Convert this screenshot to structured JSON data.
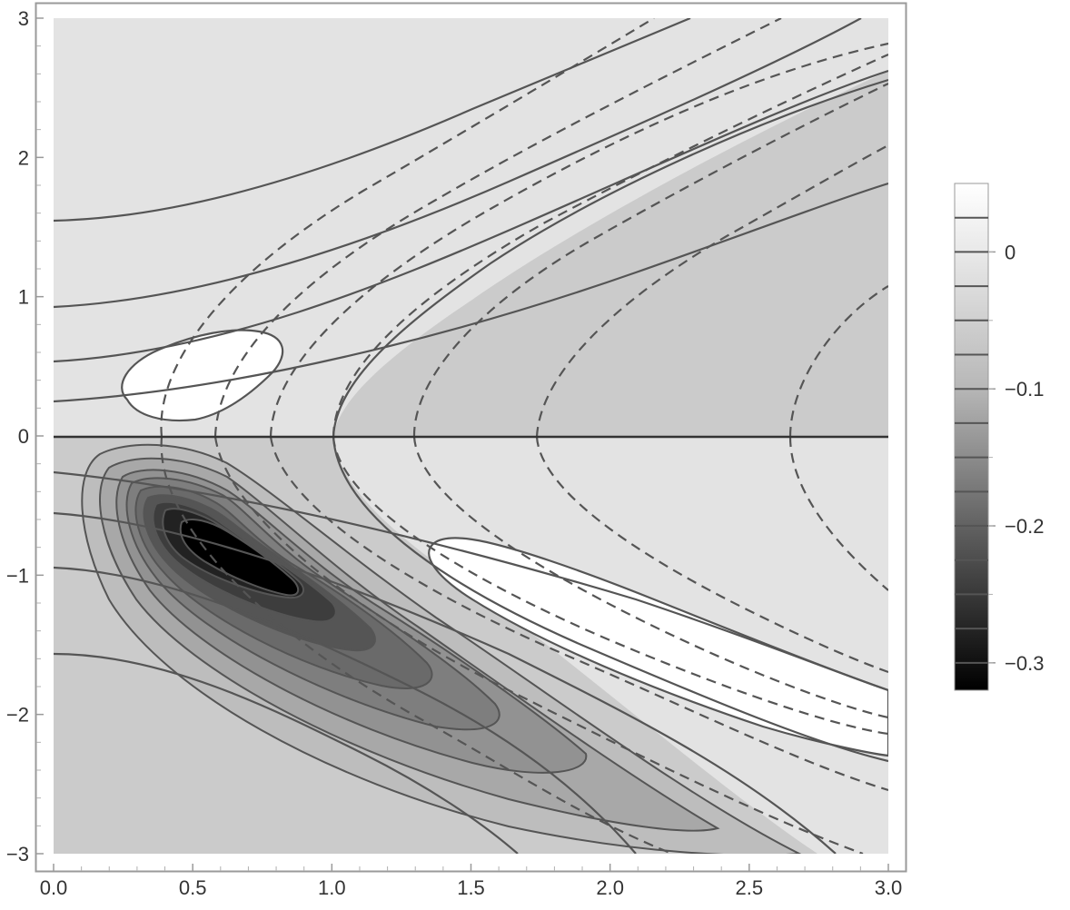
{
  "chart_data": {
    "type": "contour",
    "title": "",
    "xlabel": "",
    "ylabel": "",
    "xlim": [
      0,
      3
    ],
    "ylim": [
      -3,
      3
    ],
    "x_ticks": [
      {
        "value": 0.0,
        "label": "0.0"
      },
      {
        "value": 0.5,
        "label": "0.5"
      },
      {
        "value": 1.0,
        "label": "1.0"
      },
      {
        "value": 1.5,
        "label": "1.5"
      },
      {
        "value": 2.0,
        "label": "2.0"
      },
      {
        "value": 2.5,
        "label": "2.5"
      },
      {
        "value": 3.0,
        "label": "3.0"
      }
    ],
    "y_ticks": [
      {
        "value": -3,
        "label": "−3"
      },
      {
        "value": -2,
        "label": "−2"
      },
      {
        "value": -1,
        "label": "−1"
      },
      {
        "value": 0,
        "label": "0"
      },
      {
        "value": 1,
        "label": "1"
      },
      {
        "value": 2,
        "label": "2"
      },
      {
        "value": 3,
        "label": "3"
      }
    ],
    "grid": false,
    "legend": {
      "placement": "right",
      "type": "colorbar",
      "range": [
        -0.32,
        0.05
      ],
      "ticks": [
        {
          "value": 0,
          "label": "0"
        },
        {
          "value": -0.1,
          "label": "−0.1"
        },
        {
          "value": -0.2,
          "label": "−0.2"
        },
        {
          "value": -0.3,
          "label": "−0.3"
        }
      ]
    },
    "colors": {
      "upper_background": "#e3e3e3",
      "lower_background": "#cbcbcb",
      "contour_line": "#555555",
      "white_region": "#ffffff",
      "darkest": "#000000"
    }
  }
}
